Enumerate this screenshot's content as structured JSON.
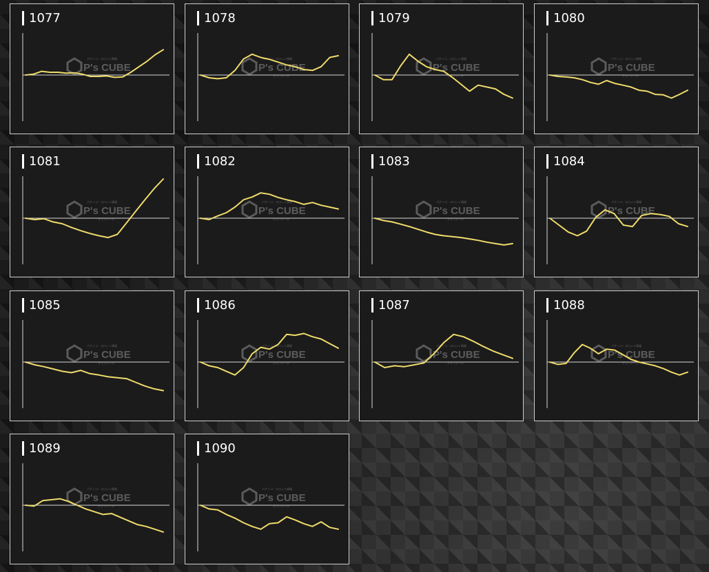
{
  "watermark": {
    "brand": "P's CUBE",
    "tagline": "パチンコ・スロット情報",
    "subline": "グラフデータ"
  },
  "chart_data": [
    {
      "type": "line",
      "label": "1077",
      "baseline": 0,
      "ylim": [
        -100,
        100
      ],
      "values": [
        0,
        2,
        8,
        6,
        6,
        4,
        5,
        2,
        -3,
        -3,
        -2,
        -5,
        -4,
        6,
        18,
        30,
        44,
        55
      ]
    },
    {
      "type": "line",
      "label": "1078",
      "baseline": 0,
      "ylim": [
        -100,
        100
      ],
      "values": [
        0,
        -6,
        -8,
        -6,
        10,
        35,
        45,
        38,
        34,
        28,
        22,
        18,
        12,
        10,
        18,
        38,
        42
      ]
    },
    {
      "type": "line",
      "label": "1079",
      "baseline": 0,
      "ylim": [
        -100,
        100
      ],
      "values": [
        0,
        -10,
        -10,
        20,
        45,
        30,
        18,
        12,
        8,
        -5,
        -20,
        -35,
        -22,
        -26,
        -30,
        -42,
        -50
      ]
    },
    {
      "type": "line",
      "label": "1080",
      "baseline": 0,
      "ylim": [
        -100,
        100
      ],
      "values": [
        0,
        -3,
        -4,
        -6,
        -10,
        -16,
        -20,
        -12,
        -18,
        -22,
        -26,
        -33,
        -35,
        -42,
        -43,
        -50,
        -42,
        -33
      ]
    },
    {
      "type": "line",
      "label": "1081",
      "baseline": 0,
      "ylim": [
        -100,
        100
      ],
      "values": [
        0,
        -3,
        -1,
        -8,
        -12,
        -20,
        -27,
        -33,
        -38,
        -42,
        -35,
        -10,
        15,
        40,
        64,
        85
      ]
    },
    {
      "type": "line",
      "label": "1082",
      "baseline": 0,
      "ylim": [
        -100,
        100
      ],
      "values": [
        0,
        -3,
        5,
        12,
        24,
        40,
        46,
        55,
        52,
        45,
        40,
        36,
        30,
        34,
        28,
        24,
        20
      ]
    },
    {
      "type": "line",
      "label": "1083",
      "baseline": 0,
      "ylim": [
        -100,
        100
      ],
      "values": [
        0,
        -5,
        -8,
        -13,
        -18,
        -24,
        -30,
        -35,
        -38,
        -40,
        -42,
        -45,
        -48,
        -52,
        -55,
        -58,
        -55
      ]
    },
    {
      "type": "line",
      "label": "1084",
      "baseline": 0,
      "ylim": [
        -100,
        100
      ],
      "values": [
        0,
        -15,
        -30,
        -38,
        -28,
        2,
        18,
        10,
        -15,
        -18,
        6,
        10,
        8,
        4,
        -12,
        -18
      ]
    },
    {
      "type": "line",
      "label": "1085",
      "baseline": 0,
      "ylim": [
        -100,
        100
      ],
      "values": [
        0,
        -6,
        -10,
        -15,
        -20,
        -23,
        -18,
        -25,
        -28,
        -32,
        -34,
        -36,
        -44,
        -52,
        -58,
        -62
      ]
    },
    {
      "type": "line",
      "label": "1086",
      "baseline": 0,
      "ylim": [
        -100,
        100
      ],
      "values": [
        0,
        -8,
        -12,
        -20,
        -28,
        -12,
        18,
        32,
        28,
        38,
        60,
        58,
        62,
        55,
        50,
        40,
        30
      ]
    },
    {
      "type": "line",
      "label": "1087",
      "baseline": 0,
      "ylim": [
        -100,
        100
      ],
      "values": [
        0,
        -12,
        -8,
        -10,
        -6,
        -2,
        18,
        42,
        60,
        55,
        45,
        34,
        24,
        16,
        8
      ]
    },
    {
      "type": "line",
      "label": "1088",
      "baseline": 0,
      "ylim": [
        -100,
        100
      ],
      "values": [
        0,
        -5,
        -3,
        20,
        38,
        30,
        18,
        28,
        26,
        16,
        6,
        0,
        -4,
        -8,
        -14,
        -22,
        -28,
        -22
      ]
    },
    {
      "type": "line",
      "label": "1089",
      "baseline": 0,
      "ylim": [
        -100,
        100
      ],
      "values": [
        0,
        -2,
        10,
        12,
        14,
        8,
        0,
        -8,
        -14,
        -20,
        -18,
        -26,
        -34,
        -42,
        -46,
        -52,
        -58
      ]
    },
    {
      "type": "line",
      "label": "1090",
      "baseline": 0,
      "ylim": [
        -100,
        100
      ],
      "values": [
        0,
        -8,
        -10,
        -20,
        -28,
        -38,
        -46,
        -52,
        -40,
        -38,
        -25,
        -32,
        -40,
        -46,
        -36,
        -48,
        -52
      ]
    }
  ]
}
